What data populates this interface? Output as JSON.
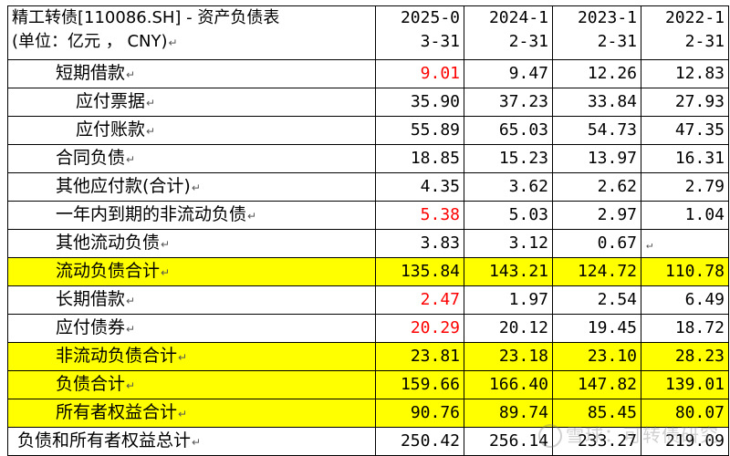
{
  "header": {
    "title_line1": "精工转债[110086.SH] - 资产负债表",
    "title_line2": "(单位：亿元 ， CNY)",
    "periods": [
      {
        "l1": "2025-0",
        "l2": "3-31"
      },
      {
        "l1": "2024-1",
        "l2": "2-31"
      },
      {
        "l1": "2023-1",
        "l2": "2-31"
      },
      {
        "l1": "2022-1",
        "l2": "2-31"
      }
    ]
  },
  "rows": [
    {
      "label": "短期借款",
      "indent": 1,
      "values": [
        "9.01",
        "9.47",
        "12.26",
        "12.83"
      ],
      "red": [
        true,
        false,
        false,
        false
      ],
      "highlight": false
    },
    {
      "label": "应付票据",
      "indent": 2,
      "values": [
        "35.90",
        "37.23",
        "33.84",
        "27.93"
      ],
      "red": [
        false,
        false,
        false,
        false
      ],
      "highlight": false
    },
    {
      "label": "应付账款",
      "indent": 2,
      "values": [
        "55.89",
        "65.03",
        "54.73",
        "47.35"
      ],
      "red": [
        false,
        false,
        false,
        false
      ],
      "highlight": false
    },
    {
      "label": "合同负债",
      "indent": 1,
      "values": [
        "18.85",
        "15.23",
        "13.97",
        "16.31"
      ],
      "red": [
        false,
        false,
        false,
        false
      ],
      "highlight": false
    },
    {
      "label": "其他应付款(合计)",
      "indent": 1,
      "values": [
        "4.35",
        "3.62",
        "2.62",
        "2.79"
      ],
      "red": [
        false,
        false,
        false,
        false
      ],
      "highlight": false
    },
    {
      "label": "一年内到期的非流动负债",
      "indent": 1,
      "values": [
        "5.38",
        "5.03",
        "2.97",
        "1.04"
      ],
      "red": [
        true,
        false,
        false,
        false
      ],
      "highlight": false
    },
    {
      "label": "其他流动负债",
      "indent": 1,
      "values": [
        "3.83",
        "3.12",
        "0.67",
        ""
      ],
      "red": [
        false,
        false,
        false,
        false
      ],
      "highlight": false
    },
    {
      "label": "流动负债合计",
      "indent": 1,
      "values": [
        "135.84",
        "143.21",
        "124.72",
        "110.78"
      ],
      "red": [
        false,
        false,
        false,
        false
      ],
      "highlight": true
    },
    {
      "label": "长期借款",
      "indent": 1,
      "values": [
        "2.47",
        "1.97",
        "2.54",
        "6.49"
      ],
      "red": [
        true,
        false,
        false,
        false
      ],
      "highlight": false
    },
    {
      "label": "应付债券",
      "indent": 1,
      "values": [
        "20.29",
        "20.12",
        "19.45",
        "18.72"
      ],
      "red": [
        true,
        false,
        false,
        false
      ],
      "highlight": false
    },
    {
      "label": "非流动负债合计",
      "indent": 1,
      "values": [
        "23.81",
        "23.18",
        "23.10",
        "28.23"
      ],
      "red": [
        false,
        false,
        false,
        false
      ],
      "highlight": true
    },
    {
      "label": "负债合计",
      "indent": 1,
      "values": [
        "159.66",
        "166.40",
        "147.82",
        "139.01"
      ],
      "red": [
        false,
        false,
        false,
        false
      ],
      "highlight": true
    },
    {
      "label": "所有者权益合计",
      "indent": 1,
      "values": [
        "90.76",
        "89.74",
        "85.45",
        "80.07"
      ],
      "red": [
        false,
        false,
        false,
        false
      ],
      "highlight": true
    },
    {
      "label": "负债和所有者权益总计",
      "indent": 0,
      "values": [
        "250.42",
        "256.14",
        "233.27",
        "219.09"
      ],
      "red": [
        false,
        false,
        false,
        false
      ],
      "highlight": false
    }
  ],
  "watermark": "雪球：可转债研究",
  "colors": {
    "highlight": "#ffff00",
    "negative_flag": "#ff0000"
  }
}
